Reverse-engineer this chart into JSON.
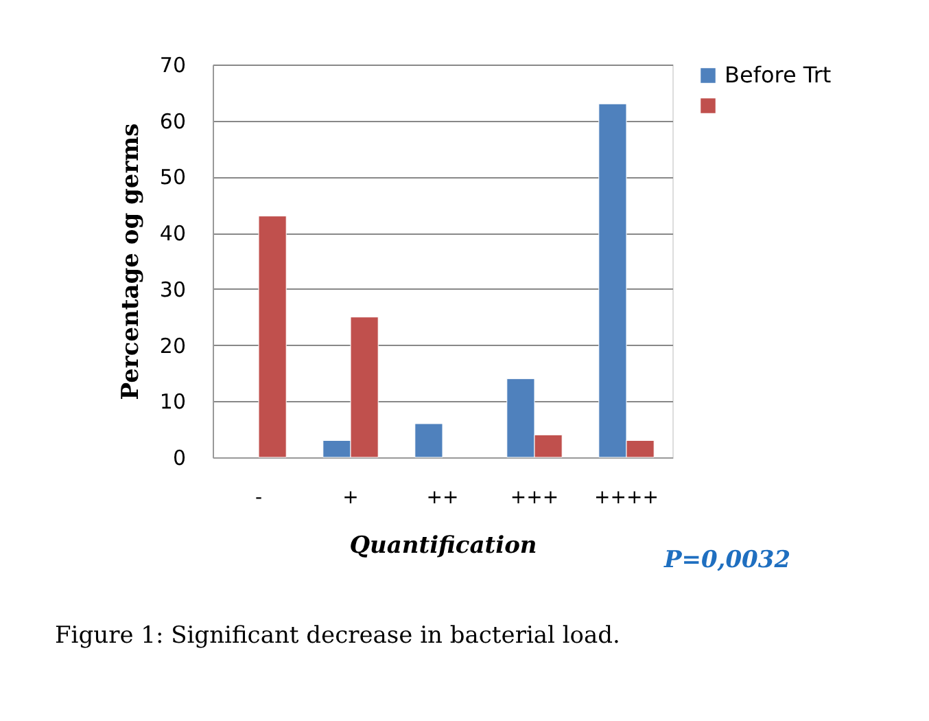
{
  "chart_data": {
    "type": "bar",
    "xlabel": "Quantification",
    "ylabel": "Percentage og germs",
    "categories": [
      "-",
      "+",
      "++",
      "+++",
      "++++"
    ],
    "series": [
      {
        "name": "Before Trt",
        "color": "#4f81bd",
        "values": [
          null,
          3,
          6,
          14,
          63
        ]
      },
      {
        "color": "#c0504d",
        "values": [
          43,
          25,
          null,
          4,
          3
        ]
      }
    ],
    "ylim": [
      0,
      70
    ],
    "yticks": [
      0,
      10,
      20,
      30,
      40,
      50,
      60,
      70
    ],
    "grid": "y",
    "legend": "right",
    "annotations": [
      "P=0,0032",
      "Figure 1: Significant decrease in bacterial load."
    ]
  }
}
